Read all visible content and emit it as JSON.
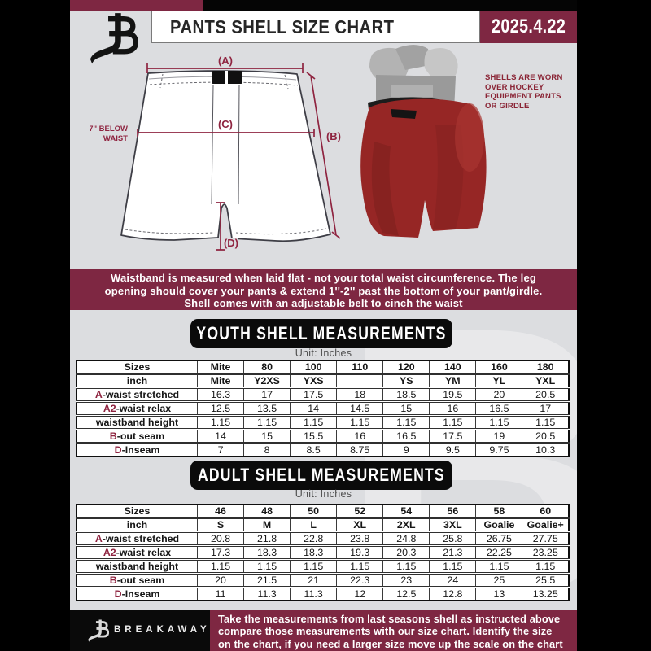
{
  "colors": {
    "accent_maroon": "#7e2742",
    "diagram_maroon": "#8f2440",
    "banner_black": "#0b0b0b",
    "page_gray": "#dcdde0",
    "shell_red": "#962625"
  },
  "header": {
    "title": "PANTS SHELL SIZE CHART",
    "date": "2025.4.22",
    "watermark_letter": "B"
  },
  "diagram": {
    "label_a": "(A)",
    "label_b": "(B)",
    "label_c": "(C)",
    "label_d": "(D)",
    "below_waist_line1": "7'' BELOW",
    "below_waist_line2": "WAIST",
    "photo_caption_lines": [
      "SHELLS ARE WORN",
      "OVER HOCKEY",
      "EQUIPMENT PANTS",
      "OR GIRDLE"
    ]
  },
  "info_banner_lines": [
    "Waistband is measured when laid flat - not your total waist circumference. The leg",
    "opening should cover your pants & extend 1''-2'' past the bottom of your pant/girdle.",
    "Shell comes with an adjustable belt to cinch the waist"
  ],
  "youth_section": {
    "title": "YOUTH SHELL MEASUREMENTS",
    "unit": "Unit: Inches"
  },
  "adult_section": {
    "title": "ADULT SHELL MEASUREMENTS",
    "unit": "Unit: Inches"
  },
  "youth_table": {
    "rows": [
      {
        "prefix": "",
        "label": "Sizes",
        "bold": true,
        "values": [
          "Mite",
          "80",
          "100",
          "110",
          "120",
          "140",
          "160",
          "180"
        ]
      },
      {
        "prefix": "",
        "label": "inch",
        "bold": true,
        "values": [
          "Mite",
          "Y2XS",
          "YXS",
          "",
          "YS",
          "YM",
          "YL",
          "YXL"
        ]
      },
      {
        "prefix": "A",
        "label": "-waist stretched",
        "bold": false,
        "values": [
          "16.3",
          "17",
          "17.5",
          "18",
          "18.5",
          "19.5",
          "20",
          "20.5"
        ]
      },
      {
        "prefix": "A2",
        "label": "-waist relax",
        "bold": false,
        "values": [
          "12.5",
          "13.5",
          "14",
          "14.5",
          "15",
          "16",
          "16.5",
          "17"
        ]
      },
      {
        "prefix": "",
        "label": "waistband height",
        "bold": false,
        "values": [
          "1.15",
          "1.15",
          "1.15",
          "1.15",
          "1.15",
          "1.15",
          "1.15",
          "1.15"
        ]
      },
      {
        "prefix": "B",
        "label": "-out seam",
        "bold": false,
        "values": [
          "14",
          "15",
          "15.5",
          "16",
          "16.5",
          "17.5",
          "19",
          "20.5"
        ]
      },
      {
        "prefix": "D",
        "label": "-Inseam",
        "bold": false,
        "values": [
          "7",
          "8",
          "8.5",
          "8.75",
          "9",
          "9.5",
          "9.75",
          "10.3"
        ]
      }
    ]
  },
  "adult_table": {
    "rows": [
      {
        "prefix": "",
        "label": "Sizes",
        "bold": true,
        "values": [
          "46",
          "48",
          "50",
          "52",
          "54",
          "56",
          "58",
          "60"
        ]
      },
      {
        "prefix": "",
        "label": "inch",
        "bold": true,
        "values": [
          "S",
          "M",
          "L",
          "XL",
          "2XL",
          "3XL",
          "Goalie",
          "Goalie+"
        ]
      },
      {
        "prefix": "A",
        "label": "-waist stretched",
        "bold": false,
        "values": [
          "20.8",
          "21.8",
          "22.8",
          "23.8",
          "24.8",
          "25.8",
          "26.75",
          "27.75"
        ]
      },
      {
        "prefix": "A2",
        "label": "-waist relax",
        "bold": false,
        "values": [
          "17.3",
          "18.3",
          "18.3",
          "19.3",
          "20.3",
          "21.3",
          "22.25",
          "23.25"
        ]
      },
      {
        "prefix": "",
        "label": "waistband height",
        "bold": false,
        "values": [
          "1.15",
          "1.15",
          "1.15",
          "1.15",
          "1.15",
          "1.15",
          "1.15",
          "1.15"
        ]
      },
      {
        "prefix": "B",
        "label": "-out seam",
        "bold": false,
        "values": [
          "20",
          "21.5",
          "21",
          "22.3",
          "23",
          "24",
          "25",
          "25.5"
        ]
      },
      {
        "prefix": "D",
        "label": "-Inseam",
        "bold": false,
        "values": [
          "11",
          "11.3",
          "11.3",
          "12",
          "12.5",
          "12.8",
          "13",
          "13.25"
        ]
      }
    ]
  },
  "footer": {
    "brand": "BREAKAWAY",
    "lines": [
      "Take the measurements from last seasons shell as instructed above",
      "compare those measurements  with our size chart. Identify the size",
      "on the chart, if you need a larger size move up the scale on the chart"
    ]
  }
}
